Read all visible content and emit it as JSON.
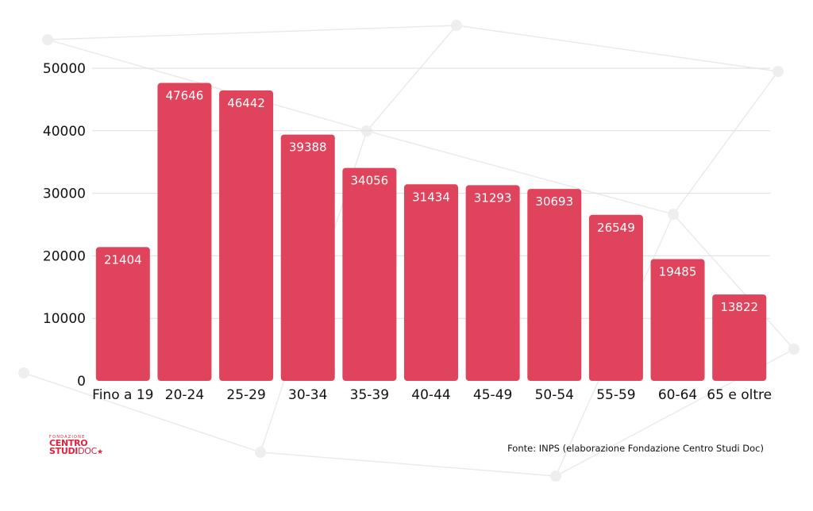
{
  "chart_data": {
    "type": "bar",
    "categories": [
      "Fino a 19",
      "20-24",
      "25-29",
      "30-34",
      "35-39",
      "40-44",
      "45-49",
      "50-54",
      "55-59",
      "60-64",
      "65 e oltre"
    ],
    "values": [
      21404,
      47646,
      46442,
      39388,
      34056,
      31434,
      31293,
      30693,
      26549,
      19485,
      13822
    ],
    "data_labels": [
      "21404",
      "47646",
      "46442",
      "39388",
      "34056",
      "31434",
      "31293",
      "30693",
      "26549",
      "19485",
      "13822"
    ],
    "y_ticks": [
      "0",
      "10000",
      "20000",
      "30000",
      "40000",
      "50000"
    ],
    "ylim": [
      0,
      50000
    ],
    "grid": true,
    "legend": "none",
    "title": "",
    "xlabel": "",
    "ylabel": ""
  },
  "colors": {
    "bar": "#e0445c",
    "logo": "#e0233a",
    "grid": "#dedede",
    "text": "#111111"
  },
  "logo": {
    "small": "FONDAZIONE",
    "line1": "CENTRO",
    "line2_bold": "STUDI",
    "line2_thin": "DOC"
  },
  "source": "Fonte: INPS (elaborazione Fondazione Centro Studi Doc)"
}
